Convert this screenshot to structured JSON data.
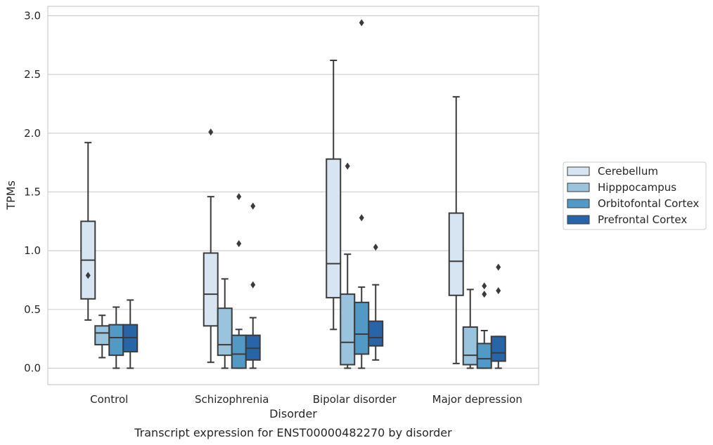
{
  "chart_data": {
    "type": "box",
    "xlabel": "Disorder",
    "ylabel": "TPMs",
    "caption": "Transcript expression for ENST00000482270 by disorder",
    "ylim": [
      -0.14,
      3.08
    ],
    "yticks": [
      0.0,
      0.5,
      1.0,
      1.5,
      2.0,
      2.5,
      3.0
    ],
    "ytick_labels": [
      "0.0",
      "0.5",
      "1.0",
      "1.5",
      "2.0",
      "2.5",
      "3.0"
    ],
    "grid": "horizontal",
    "legend_position": "right",
    "categories": [
      "Control",
      "Schizophrenia",
      "Bipolar disorder",
      "Major depression"
    ],
    "series": [
      {
        "name": "Cerebellum",
        "color": "#d7e5f2",
        "boxes": [
          {
            "whislo": 0.41,
            "q1": 0.59,
            "med": 0.92,
            "q3": 1.25,
            "whishi": 1.92,
            "fliers": [
              0.79
            ]
          },
          {
            "whislo": 0.05,
            "q1": 0.36,
            "med": 0.63,
            "q3": 0.98,
            "whishi": 1.46,
            "fliers": [
              2.01
            ]
          },
          {
            "whislo": 0.33,
            "q1": 0.6,
            "med": 0.89,
            "q3": 1.78,
            "whishi": 2.62,
            "fliers": []
          },
          {
            "whislo": 0.04,
            "q1": 0.62,
            "med": 0.91,
            "q3": 1.32,
            "whishi": 2.31,
            "fliers": []
          }
        ]
      },
      {
        "name": "Hipppocampus",
        "color": "#9ac4dd",
        "boxes": [
          {
            "whislo": 0.09,
            "q1": 0.2,
            "med": 0.3,
            "q3": 0.36,
            "whishi": 0.45,
            "fliers": []
          },
          {
            "whislo": 0.0,
            "q1": 0.11,
            "med": 0.2,
            "q3": 0.51,
            "whishi": 0.76,
            "fliers": []
          },
          {
            "whislo": 0.0,
            "q1": 0.03,
            "med": 0.22,
            "q3": 0.63,
            "whishi": 0.97,
            "fliers": [
              1.72
            ]
          },
          {
            "whislo": 0.0,
            "q1": 0.03,
            "med": 0.11,
            "q3": 0.35,
            "whishi": 0.67,
            "fliers": []
          }
        ]
      },
      {
        "name": "Orbitofontal Cortex",
        "color": "#5399c6",
        "boxes": [
          {
            "whislo": 0.0,
            "q1": 0.11,
            "med": 0.26,
            "q3": 0.37,
            "whishi": 0.52,
            "fliers": []
          },
          {
            "whislo": 0.0,
            "q1": 0.0,
            "med": 0.12,
            "q3": 0.28,
            "whishi": 0.33,
            "fliers": [
              1.06,
              1.46
            ]
          },
          {
            "whislo": 0.0,
            "q1": 0.12,
            "med": 0.29,
            "q3": 0.56,
            "whishi": 0.69,
            "fliers": [
              1.28,
              2.94
            ]
          },
          {
            "whislo": 0.0,
            "q1": 0.0,
            "med": 0.08,
            "q3": 0.21,
            "whishi": 0.32,
            "fliers": [
              0.63,
              0.7
            ]
          }
        ]
      },
      {
        "name": "Prefrontal Cortex",
        "color": "#2764a8",
        "boxes": [
          {
            "whislo": 0.0,
            "q1": 0.14,
            "med": 0.26,
            "q3": 0.37,
            "whishi": 0.58,
            "fliers": []
          },
          {
            "whislo": 0.0,
            "q1": 0.07,
            "med": 0.17,
            "q3": 0.28,
            "whishi": 0.43,
            "fliers": [
              0.71,
              1.38
            ]
          },
          {
            "whislo": 0.07,
            "q1": 0.19,
            "med": 0.26,
            "q3": 0.4,
            "whishi": 0.71,
            "fliers": [
              1.03
            ]
          },
          {
            "whislo": 0.0,
            "q1": 0.06,
            "med": 0.13,
            "q3": 0.27,
            "whishi": 0.27,
            "fliers": [
              0.66,
              0.86
            ]
          }
        ]
      }
    ]
  }
}
